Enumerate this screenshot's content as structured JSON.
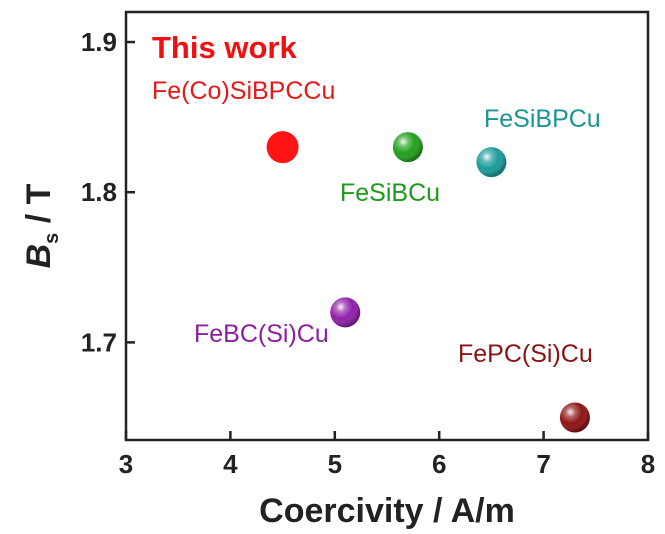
{
  "chart_data": {
    "type": "scatter",
    "xlabel": "Coercivity / A/m",
    "ylabel_main": "B",
    "ylabel_sub": "s",
    "ylabel_unit": " / T",
    "annotation": "This work",
    "annotation_color": "#f01010",
    "xlim": [
      3,
      8
    ],
    "ylim": [
      1.635,
      1.92
    ],
    "x_ticks": [
      3,
      4,
      5,
      6,
      7,
      8
    ],
    "y_ticks": [
      1.7,
      1.8,
      1.9
    ],
    "y_tick_labels": [
      "1.7",
      "1.8",
      "1.9"
    ],
    "grid": false,
    "points": [
      {
        "label": "Fe(Co)SiBPCCu",
        "x": 4.5,
        "y": 1.83,
        "color": "#ff1414",
        "label_color": "#e81818",
        "highlight": true
      },
      {
        "label": "FeSiBCu",
        "x": 5.7,
        "y": 1.83,
        "color": "#23a01e",
        "label_color": "#1f9a1c"
      },
      {
        "label": "FeSiBPCu",
        "x": 6.5,
        "y": 1.82,
        "color": "#1b9a9a",
        "label_color": "#1a9595"
      },
      {
        "label": "FeBC(Si)Cu",
        "x": 5.1,
        "y": 1.72,
        "color": "#8f20a8",
        "label_color": "#8a1fa0"
      },
      {
        "label": "FePC(Si)Cu",
        "x": 7.3,
        "y": 1.65,
        "color": "#8e1414",
        "label_color": "#8a1313"
      }
    ]
  }
}
